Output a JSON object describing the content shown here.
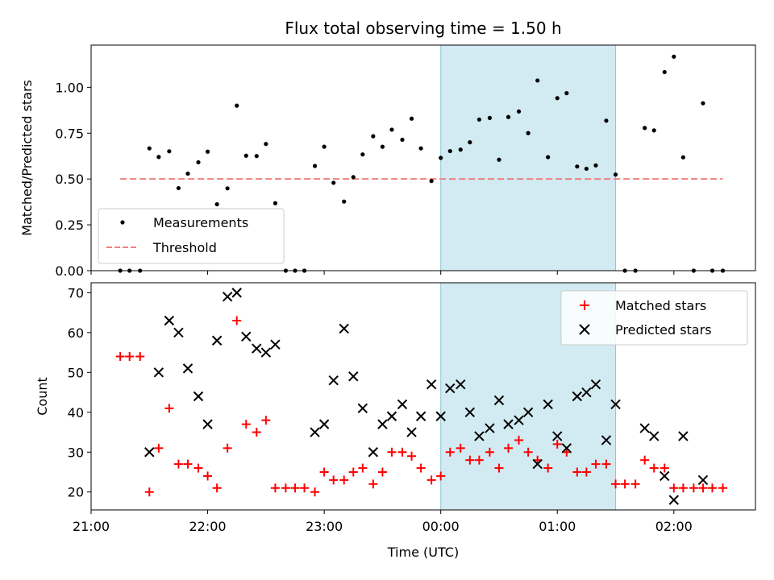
{
  "figure": {
    "title": "Flux total observing time = 1.50 h",
    "xlabel": "Time (UTC)"
  },
  "colors": {
    "matched": "#ff0000",
    "predicted": "#000000",
    "threshold": "#f08080",
    "highlight": "#add8e6",
    "measurement": "#000000"
  },
  "chart_data": [
    {
      "type": "scatter",
      "name": "ratio-panel",
      "ylabel": "Matched/Predicted stars",
      "xlim": [
        21.0,
        26.7
      ],
      "ylim": [
        0,
        1.23
      ],
      "ytick_values": [
        0.0,
        0.25,
        0.5,
        0.75,
        1.0
      ],
      "ytick_labels": [
        "0.00",
        "0.25",
        "0.50",
        "0.75",
        "1.00"
      ],
      "highlight_span": [
        24.0,
        25.5
      ],
      "legend": {
        "placement": "lower-left",
        "entries": [
          "Measurements",
          "Threshold"
        ]
      },
      "threshold": {
        "name": "Threshold",
        "value": 0.5,
        "x_range": [
          21.25,
          26.42
        ]
      },
      "series": [
        {
          "name": "Measurements",
          "marker": "dot",
          "points": [
            [
              21.25,
              0
            ],
            [
              21.33,
              0
            ],
            [
              21.42,
              0
            ],
            [
              21.5,
              0.667
            ],
            [
              21.58,
              0.62
            ],
            [
              21.67,
              0.651
            ],
            [
              21.75,
              0.45
            ],
            [
              21.83,
              0.529
            ],
            [
              21.92,
              0.591
            ],
            [
              22.0,
              0.649
            ],
            [
              22.08,
              0.362
            ],
            [
              22.17,
              0.449
            ],
            [
              22.25,
              0.9
            ],
            [
              22.33,
              0.627
            ],
            [
              22.42,
              0.625
            ],
            [
              22.5,
              0.691
            ],
            [
              22.58,
              0.368
            ],
            [
              22.67,
              0
            ],
            [
              22.75,
              0
            ],
            [
              22.83,
              0
            ],
            [
              22.92,
              0.571
            ],
            [
              23.0,
              0.676
            ],
            [
              23.08,
              0.479
            ],
            [
              23.17,
              0.377
            ],
            [
              23.25,
              0.51
            ],
            [
              23.33,
              0.634
            ],
            [
              23.42,
              0.733
            ],
            [
              23.5,
              0.676
            ],
            [
              23.58,
              0.769
            ],
            [
              23.67,
              0.714
            ],
            [
              23.75,
              0.829
            ],
            [
              23.83,
              0.667
            ],
            [
              23.92,
              0.489
            ],
            [
              24.0,
              0.615
            ],
            [
              24.08,
              0.652
            ],
            [
              24.17,
              0.66
            ],
            [
              24.25,
              0.7
            ],
            [
              24.33,
              0.824
            ],
            [
              24.42,
              0.833
            ],
            [
              24.5,
              0.605
            ],
            [
              24.58,
              0.838
            ],
            [
              24.67,
              0.868
            ],
            [
              24.75,
              0.75
            ],
            [
              24.83,
              1.037
            ],
            [
              24.92,
              0.619
            ],
            [
              25.0,
              0.941
            ],
            [
              25.08,
              0.968
            ],
            [
              25.17,
              0.568
            ],
            [
              25.25,
              0.556
            ],
            [
              25.33,
              0.574
            ],
            [
              25.42,
              0.818
            ],
            [
              25.5,
              0.524
            ],
            [
              25.58,
              0
            ],
            [
              25.67,
              0
            ],
            [
              25.75,
              0.778
            ],
            [
              25.83,
              0.765
            ],
            [
              25.92,
              1.083
            ],
            [
              26.0,
              1.167
            ],
            [
              26.08,
              0.618
            ],
            [
              26.17,
              0
            ],
            [
              26.25,
              0.913
            ],
            [
              26.33,
              0
            ],
            [
              26.42,
              0
            ]
          ]
        }
      ]
    },
    {
      "type": "scatter",
      "name": "count-panel",
      "ylabel": "Count",
      "xlim": [
        21.0,
        26.7
      ],
      "ylim": [
        15.5,
        72.5
      ],
      "ytick_values": [
        20,
        30,
        40,
        50,
        60,
        70
      ],
      "ytick_labels": [
        "20",
        "30",
        "40",
        "50",
        "60",
        "70"
      ],
      "xtick_values": [
        21,
        22,
        23,
        24,
        25,
        26
      ],
      "xtick_labels": [
        "21:00",
        "22:00",
        "23:00",
        "00:00",
        "01:00",
        "02:00"
      ],
      "highlight_span": [
        24.0,
        25.5
      ],
      "legend": {
        "placement": "upper-right",
        "entries": [
          "Matched stars",
          "Predicted stars"
        ]
      },
      "series": [
        {
          "name": "Matched stars",
          "marker": "plus",
          "points": [
            [
              21.25,
              54
            ],
            [
              21.33,
              54
            ],
            [
              21.42,
              54
            ],
            [
              21.5,
              20
            ],
            [
              21.58,
              31
            ],
            [
              21.67,
              41
            ],
            [
              21.75,
              27
            ],
            [
              21.83,
              27
            ],
            [
              21.92,
              26
            ],
            [
              22.0,
              24
            ],
            [
              22.08,
              21
            ],
            [
              22.17,
              31
            ],
            [
              22.25,
              63
            ],
            [
              22.33,
              37
            ],
            [
              22.42,
              35
            ],
            [
              22.5,
              38
            ],
            [
              22.58,
              21
            ],
            [
              22.67,
              21
            ],
            [
              22.75,
              21
            ],
            [
              22.83,
              21
            ],
            [
              22.92,
              20
            ],
            [
              23.0,
              25
            ],
            [
              23.08,
              23
            ],
            [
              23.17,
              23
            ],
            [
              23.25,
              25
            ],
            [
              23.33,
              26
            ],
            [
              23.42,
              22
            ],
            [
              23.5,
              25
            ],
            [
              23.58,
              30
            ],
            [
              23.67,
              30
            ],
            [
              23.75,
              29
            ],
            [
              23.83,
              26
            ],
            [
              23.92,
              23
            ],
            [
              24.0,
              24
            ],
            [
              24.08,
              30
            ],
            [
              24.17,
              31
            ],
            [
              24.25,
              28
            ],
            [
              24.33,
              28
            ],
            [
              24.42,
              30
            ],
            [
              24.5,
              26
            ],
            [
              24.58,
              31
            ],
            [
              24.67,
              33
            ],
            [
              24.75,
              30
            ],
            [
              24.83,
              28
            ],
            [
              24.92,
              26
            ],
            [
              25.0,
              32
            ],
            [
              25.08,
              30
            ],
            [
              25.17,
              25
            ],
            [
              25.25,
              25
            ],
            [
              25.33,
              27
            ],
            [
              25.42,
              27
            ],
            [
              25.5,
              22
            ],
            [
              25.58,
              22
            ],
            [
              25.67,
              22
            ],
            [
              25.75,
              28
            ],
            [
              25.83,
              26
            ],
            [
              25.92,
              26
            ],
            [
              26.0,
              21
            ],
            [
              26.08,
              21
            ],
            [
              26.17,
              21
            ],
            [
              26.25,
              21
            ],
            [
              26.33,
              21
            ],
            [
              26.42,
              21
            ]
          ]
        },
        {
          "name": "Predicted stars",
          "marker": "x",
          "points": [
            [
              21.5,
              30
            ],
            [
              21.58,
              50
            ],
            [
              21.67,
              63
            ],
            [
              21.75,
              60
            ],
            [
              21.83,
              51
            ],
            [
              21.92,
              44
            ],
            [
              22.0,
              37
            ],
            [
              22.08,
              58
            ],
            [
              22.17,
              69
            ],
            [
              22.25,
              70
            ],
            [
              22.33,
              59
            ],
            [
              22.42,
              56
            ],
            [
              22.5,
              55
            ],
            [
              22.58,
              57
            ],
            [
              22.92,
              35
            ],
            [
              23.0,
              37
            ],
            [
              23.08,
              48
            ],
            [
              23.17,
              61
            ],
            [
              23.25,
              49
            ],
            [
              23.33,
              41
            ],
            [
              23.42,
              30
            ],
            [
              23.5,
              37
            ],
            [
              23.58,
              39
            ],
            [
              23.67,
              42
            ],
            [
              23.75,
              35
            ],
            [
              23.83,
              39
            ],
            [
              23.92,
              47
            ],
            [
              24.0,
              39
            ],
            [
              24.08,
              46
            ],
            [
              24.17,
              47
            ],
            [
              24.25,
              40
            ],
            [
              24.33,
              34
            ],
            [
              24.42,
              36
            ],
            [
              24.5,
              43
            ],
            [
              24.58,
              37
            ],
            [
              24.67,
              38
            ],
            [
              24.75,
              40
            ],
            [
              24.83,
              27
            ],
            [
              24.92,
              42
            ],
            [
              25.0,
              34
            ],
            [
              25.08,
              31
            ],
            [
              25.17,
              44
            ],
            [
              25.25,
              45
            ],
            [
              25.33,
              47
            ],
            [
              25.42,
              33
            ],
            [
              25.5,
              42
            ],
            [
              25.75,
              36
            ],
            [
              25.83,
              34
            ],
            [
              25.92,
              24
            ],
            [
              26.0,
              18
            ],
            [
              26.08,
              34
            ],
            [
              26.25,
              23
            ]
          ]
        }
      ]
    }
  ]
}
